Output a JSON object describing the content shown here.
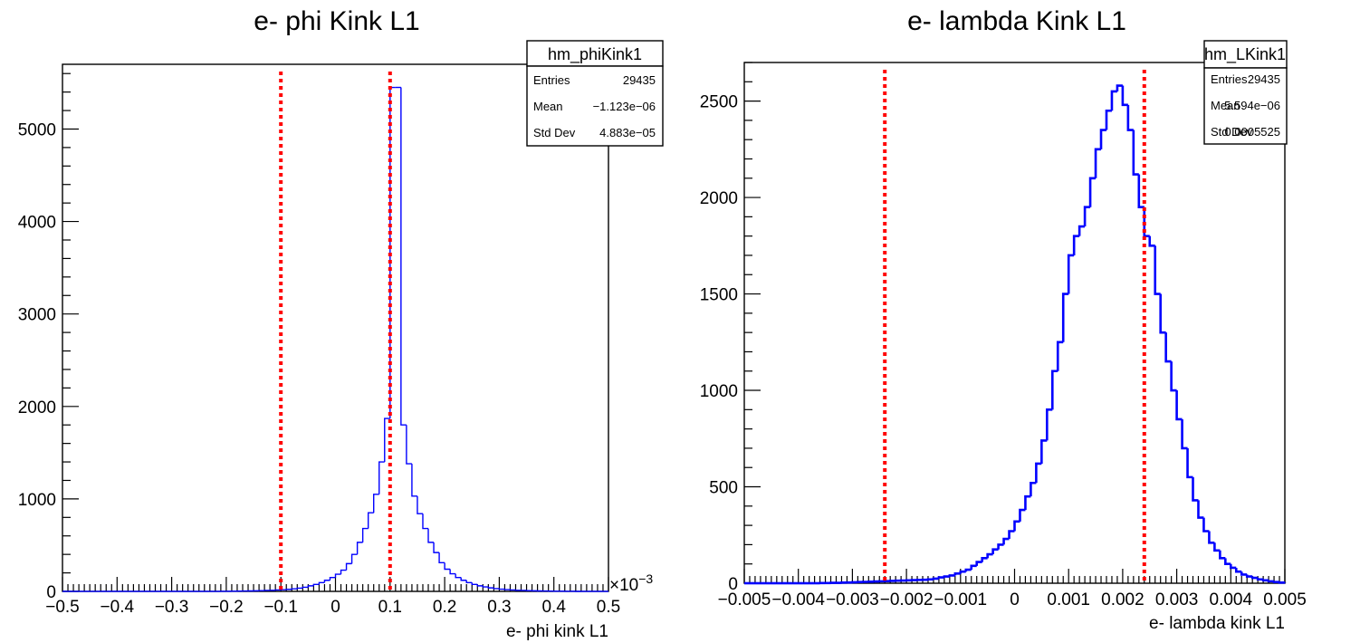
{
  "chart_data": [
    {
      "type": "histogram",
      "title": "e- phi Kink L1",
      "xlabel": "e- phi kink L1",
      "ylabel": "",
      "x_multiplier_label": "×10",
      "x_multiplier_exp": "−3",
      "xlim": [
        -0.5,
        0.5
      ],
      "ylim": [
        0,
        5700
      ],
      "x_ticks": [
        -0.5,
        -0.4,
        -0.3,
        -0.2,
        -0.1,
        0,
        0.1,
        0.2,
        0.3,
        0.4,
        0.5
      ],
      "x_tick_labels": [
        "−0.5",
        "−0.4",
        "−0.3",
        "−0.2",
        "−0.1",
        "0",
        "0.1",
        "0.2",
        "0.3",
        "0.4",
        "0.5"
      ],
      "y_ticks": [
        0,
        1000,
        2000,
        3000,
        4000,
        5000
      ],
      "y_tick_labels": [
        "0",
        "1000",
        "2000",
        "3000",
        "4000",
        "5000"
      ],
      "bin_edges_start": -0.5,
      "bin_width": 0.01,
      "counts": [
        0,
        0,
        0,
        0,
        0,
        0,
        0,
        0,
        0,
        0,
        0,
        0,
        0,
        0,
        0,
        0,
        0,
        0,
        0,
        0,
        0,
        0,
        0,
        0,
        0,
        0,
        0,
        0,
        0,
        1,
        1,
        2,
        3,
        4,
        5,
        6,
        8,
        10,
        12,
        15,
        18,
        22,
        28,
        35,
        45,
        60,
        75,
        95,
        120,
        150,
        185,
        230,
        300,
        400,
        530,
        680,
        850,
        1050,
        1400,
        1870,
        5450,
        5450,
        1800,
        1380,
        1030,
        840,
        680,
        530,
        420,
        310,
        240,
        190,
        150,
        120,
        95,
        75,
        60,
        48,
        38,
        30,
        24,
        19,
        15,
        12,
        10,
        8,
        6,
        5,
        4,
        3,
        2,
        2,
        1,
        1,
        0,
        0,
        0,
        0,
        0,
        0
      ],
      "cut_lines": [
        -0.1,
        0.1
      ],
      "colors": {
        "histogram": "#0000ff",
        "cut": "#ff0000"
      },
      "stats": {
        "name": "hm_phiKink1",
        "rows": [
          {
            "label": "Entries",
            "value": "29435"
          },
          {
            "label": "Mean",
            "value": "−1.123e−06"
          },
          {
            "label": "Std Dev",
            "value": "4.883e−05"
          }
        ]
      }
    },
    {
      "type": "histogram",
      "title": "e- lambda Kink L1",
      "xlabel": "e- lambda kink L1",
      "ylabel": "",
      "xlim": [
        -0.005,
        0.005
      ],
      "ylim": [
        0,
        2700
      ],
      "x_ticks": [
        -0.005,
        -0.004,
        -0.003,
        -0.002,
        -0.001,
        0,
        0.001,
        0.002,
        0.003,
        0.004,
        0.005
      ],
      "x_tick_labels": [
        "−0.005",
        "−0.004",
        "−0.003",
        "−0.002",
        "−0.001",
        "0",
        "0.001",
        "0.002",
        "0.003",
        "0.004",
        "0.005"
      ],
      "y_ticks": [
        0,
        500,
        1000,
        1500,
        2000,
        2500
      ],
      "y_tick_labels": [
        "0",
        "500",
        "1000",
        "1500",
        "2000",
        "2500"
      ],
      "bin_edges_start": -0.005,
      "bin_width": 0.0001,
      "counts": [
        0,
        0,
        0,
        0,
        0,
        0,
        0,
        0,
        0,
        0,
        0,
        0,
        0,
        0,
        1,
        1,
        2,
        2,
        3,
        4,
        5,
        6,
        7,
        8,
        9,
        10,
        11,
        12,
        13,
        14,
        15,
        16,
        17,
        18,
        20,
        24,
        30,
        35,
        40,
        50,
        60,
        70,
        90,
        110,
        130,
        150,
        175,
        200,
        230,
        270,
        320,
        380,
        450,
        520,
        620,
        740,
        900,
        1100,
        1250,
        1500,
        1700,
        1800,
        1850,
        1950,
        2100,
        2250,
        2350,
        2450,
        2550,
        2580,
        2480,
        2350,
        2120,
        1950,
        1800,
        1750,
        1500,
        1300,
        1150,
        1000,
        850,
        700,
        550,
        430,
        340,
        270,
        210,
        170,
        130,
        100,
        80,
        60,
        45,
        35,
        28,
        20,
        15,
        10,
        6,
        3
      ],
      "cut_lines": [
        -0.0024,
        0.0024
      ],
      "colors": {
        "histogram": "#0000ff",
        "cut": "#ff0000"
      },
      "stats": {
        "name": "hm_LKink1",
        "rows": [
          {
            "label": "Entries",
            "value": "29435"
          },
          {
            "label": "Mean",
            "value": "5.594e−06"
          },
          {
            "label": "Std Dev",
            "value": "0.0005525"
          }
        ]
      }
    }
  ]
}
